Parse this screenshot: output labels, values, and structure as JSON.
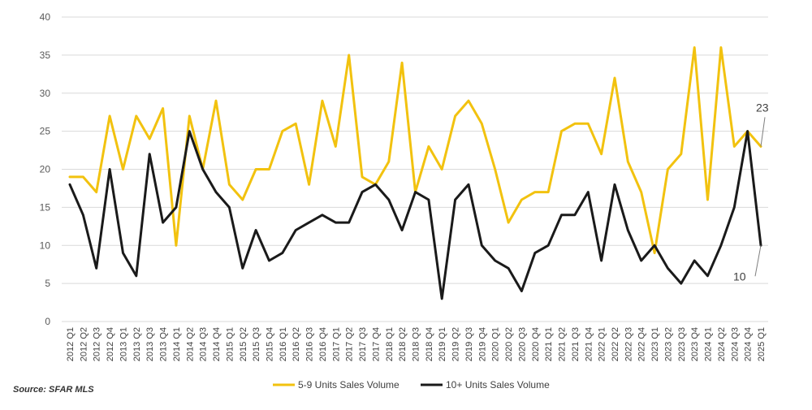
{
  "chart_data": {
    "type": "line",
    "ylim": [
      0,
      40
    ],
    "yticks": [
      0,
      5,
      10,
      15,
      20,
      25,
      30,
      35,
      40
    ],
    "grid": true,
    "legend_position": "bottom-center",
    "categories": [
      "2012 Q1",
      "2012 Q2",
      "2012 Q3",
      "2012 Q4",
      "2013 Q1",
      "2013 Q2",
      "2013 Q3",
      "2013 Q4",
      "2014 Q1",
      "2014 Q2",
      "2014 Q3",
      "2014 Q4",
      "2015 Q1",
      "2015 Q2",
      "2015 Q3",
      "2015 Q4",
      "2016 Q1",
      "2016 Q2",
      "2016 Q3",
      "2016 Q4",
      "2017 Q1",
      "2017 Q2",
      "2017 Q3",
      "2017 Q4",
      "2018 Q1",
      "2018 Q2",
      "2018 Q3",
      "2018 Q4",
      "2019 Q1",
      "2019 Q2",
      "2019 Q3",
      "2019 Q4",
      "2020 Q1",
      "2020 Q2",
      "2020 Q3",
      "2020 Q4",
      "2021 Q1",
      "2021 Q2",
      "2021 Q3",
      "2021 Q4",
      "2022 Q1",
      "2022 Q2",
      "2022 Q3",
      "2022 Q4",
      "2023 Q1",
      "2023 Q2",
      "2023 Q3",
      "2023 Q4",
      "2024 Q1",
      "2024 Q2",
      "2024 Q3",
      "2024 Q4",
      "2025 Q1"
    ],
    "series": [
      {
        "name": "5-9 Units Sales Volume",
        "color": "#F2C20F",
        "values": [
          19,
          19,
          17,
          27,
          20,
          27,
          24,
          28,
          10,
          27,
          20,
          29,
          18,
          16,
          20,
          20,
          25,
          26,
          18,
          29,
          23,
          35,
          19,
          18,
          21,
          34,
          17,
          23,
          20,
          27,
          29,
          26,
          20,
          13,
          16,
          17,
          17,
          25,
          26,
          26,
          22,
          32,
          21,
          17,
          9,
          20,
          22,
          36,
          16,
          36,
          23,
          25,
          23
        ]
      },
      {
        "name": "10+ Units Sales Volume",
        "color": "#1a1a1a",
        "values": [
          18,
          14,
          7,
          20,
          9,
          6,
          22,
          13,
          15,
          25,
          20,
          17,
          15,
          7,
          12,
          8,
          9,
          12,
          13,
          14,
          13,
          13,
          17,
          18,
          16,
          12,
          17,
          16,
          3,
          16,
          18,
          10,
          8,
          7,
          4,
          9,
          10,
          14,
          14,
          17,
          8,
          18,
          12,
          8,
          10,
          7,
          5,
          8,
          6,
          10,
          15,
          25,
          10
        ]
      }
    ],
    "annotations": [
      {
        "series": 0,
        "label": "23"
      },
      {
        "series": 1,
        "label": "10"
      }
    ]
  },
  "source": "Source: SFAR MLS"
}
